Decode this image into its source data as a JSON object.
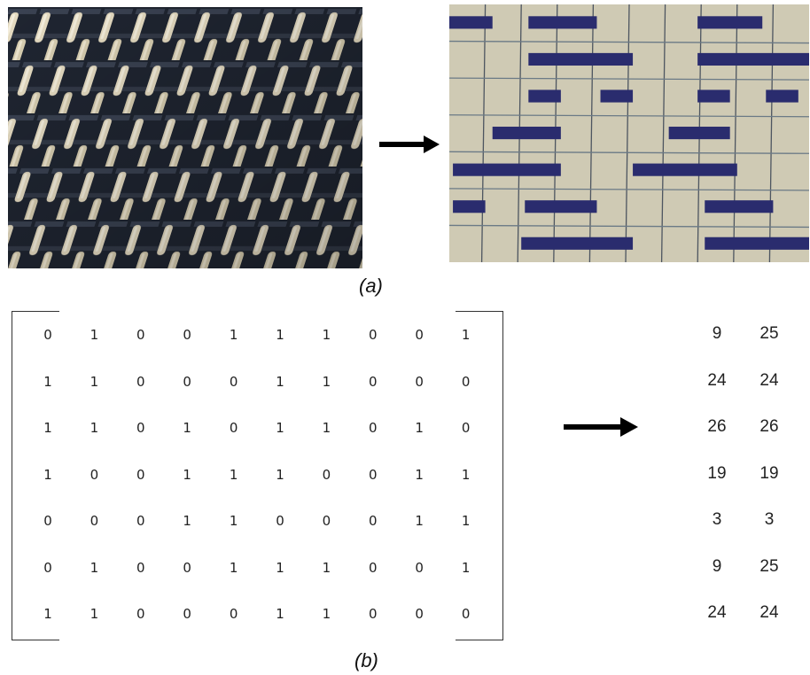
{
  "labels": {
    "a": "(a)",
    "b": "(b)"
  },
  "colors": {
    "yarn_dark": "#202633",
    "yarn_light": "#e5dcc3",
    "paper": "#cfcab4",
    "grid_line": "#4d5560",
    "ink": "#2a2c6e"
  },
  "pattern_bars": [
    {
      "row": 0,
      "from": 0.0,
      "to": 0.12
    },
    {
      "row": 0,
      "from": 0.22,
      "to": 0.41
    },
    {
      "row": 0,
      "from": 0.69,
      "to": 0.87
    },
    {
      "row": 1,
      "from": 0.22,
      "to": 0.51
    },
    {
      "row": 1,
      "from": 0.69,
      "to": 1.0
    },
    {
      "row": 2,
      "from": 0.22,
      "to": 0.31
    },
    {
      "row": 2,
      "from": 0.42,
      "to": 0.51
    },
    {
      "row": 2,
      "from": 0.69,
      "to": 0.78
    },
    {
      "row": 2,
      "from": 0.88,
      "to": 0.97
    },
    {
      "row": 3,
      "from": 0.12,
      "to": 0.31
    },
    {
      "row": 3,
      "from": 0.61,
      "to": 0.78
    },
    {
      "row": 4,
      "from": 0.01,
      "to": 0.31
    },
    {
      "row": 4,
      "from": 0.51,
      "to": 0.8
    },
    {
      "row": 5,
      "from": 0.01,
      "to": 0.1
    },
    {
      "row": 5,
      "from": 0.21,
      "to": 0.41
    },
    {
      "row": 5,
      "from": 0.71,
      "to": 0.9
    },
    {
      "row": 6,
      "from": 0.2,
      "to": 0.51
    },
    {
      "row": 6,
      "from": 0.71,
      "to": 1.0
    }
  ],
  "matrix": [
    [
      "0",
      "1",
      "0",
      "0",
      "1",
      "1",
      "1",
      "0",
      "0",
      "1"
    ],
    [
      "1",
      "1",
      "0",
      "0",
      "0",
      "1",
      "1",
      "0",
      "0",
      "0"
    ],
    [
      "1",
      "1",
      "0",
      "1",
      "0",
      "1",
      "1",
      "0",
      "1",
      "0"
    ],
    [
      "1",
      "0",
      "0",
      "1",
      "1",
      "1",
      "0",
      "0",
      "1",
      "1"
    ],
    [
      "0",
      "0",
      "0",
      "1",
      "1",
      "0",
      "0",
      "0",
      "1",
      "1"
    ],
    [
      "0",
      "1",
      "0",
      "0",
      "1",
      "1",
      "1",
      "0",
      "0",
      "1"
    ],
    [
      "1",
      "1",
      "0",
      "0",
      "0",
      "1",
      "1",
      "0",
      "0",
      "0"
    ]
  ],
  "codes": [
    [
      "9",
      "25"
    ],
    [
      "24",
      "24"
    ],
    [
      "26",
      "26"
    ],
    [
      "19",
      "19"
    ],
    [
      "3",
      "3"
    ],
    [
      "9",
      "25"
    ],
    [
      "24",
      "24"
    ]
  ]
}
